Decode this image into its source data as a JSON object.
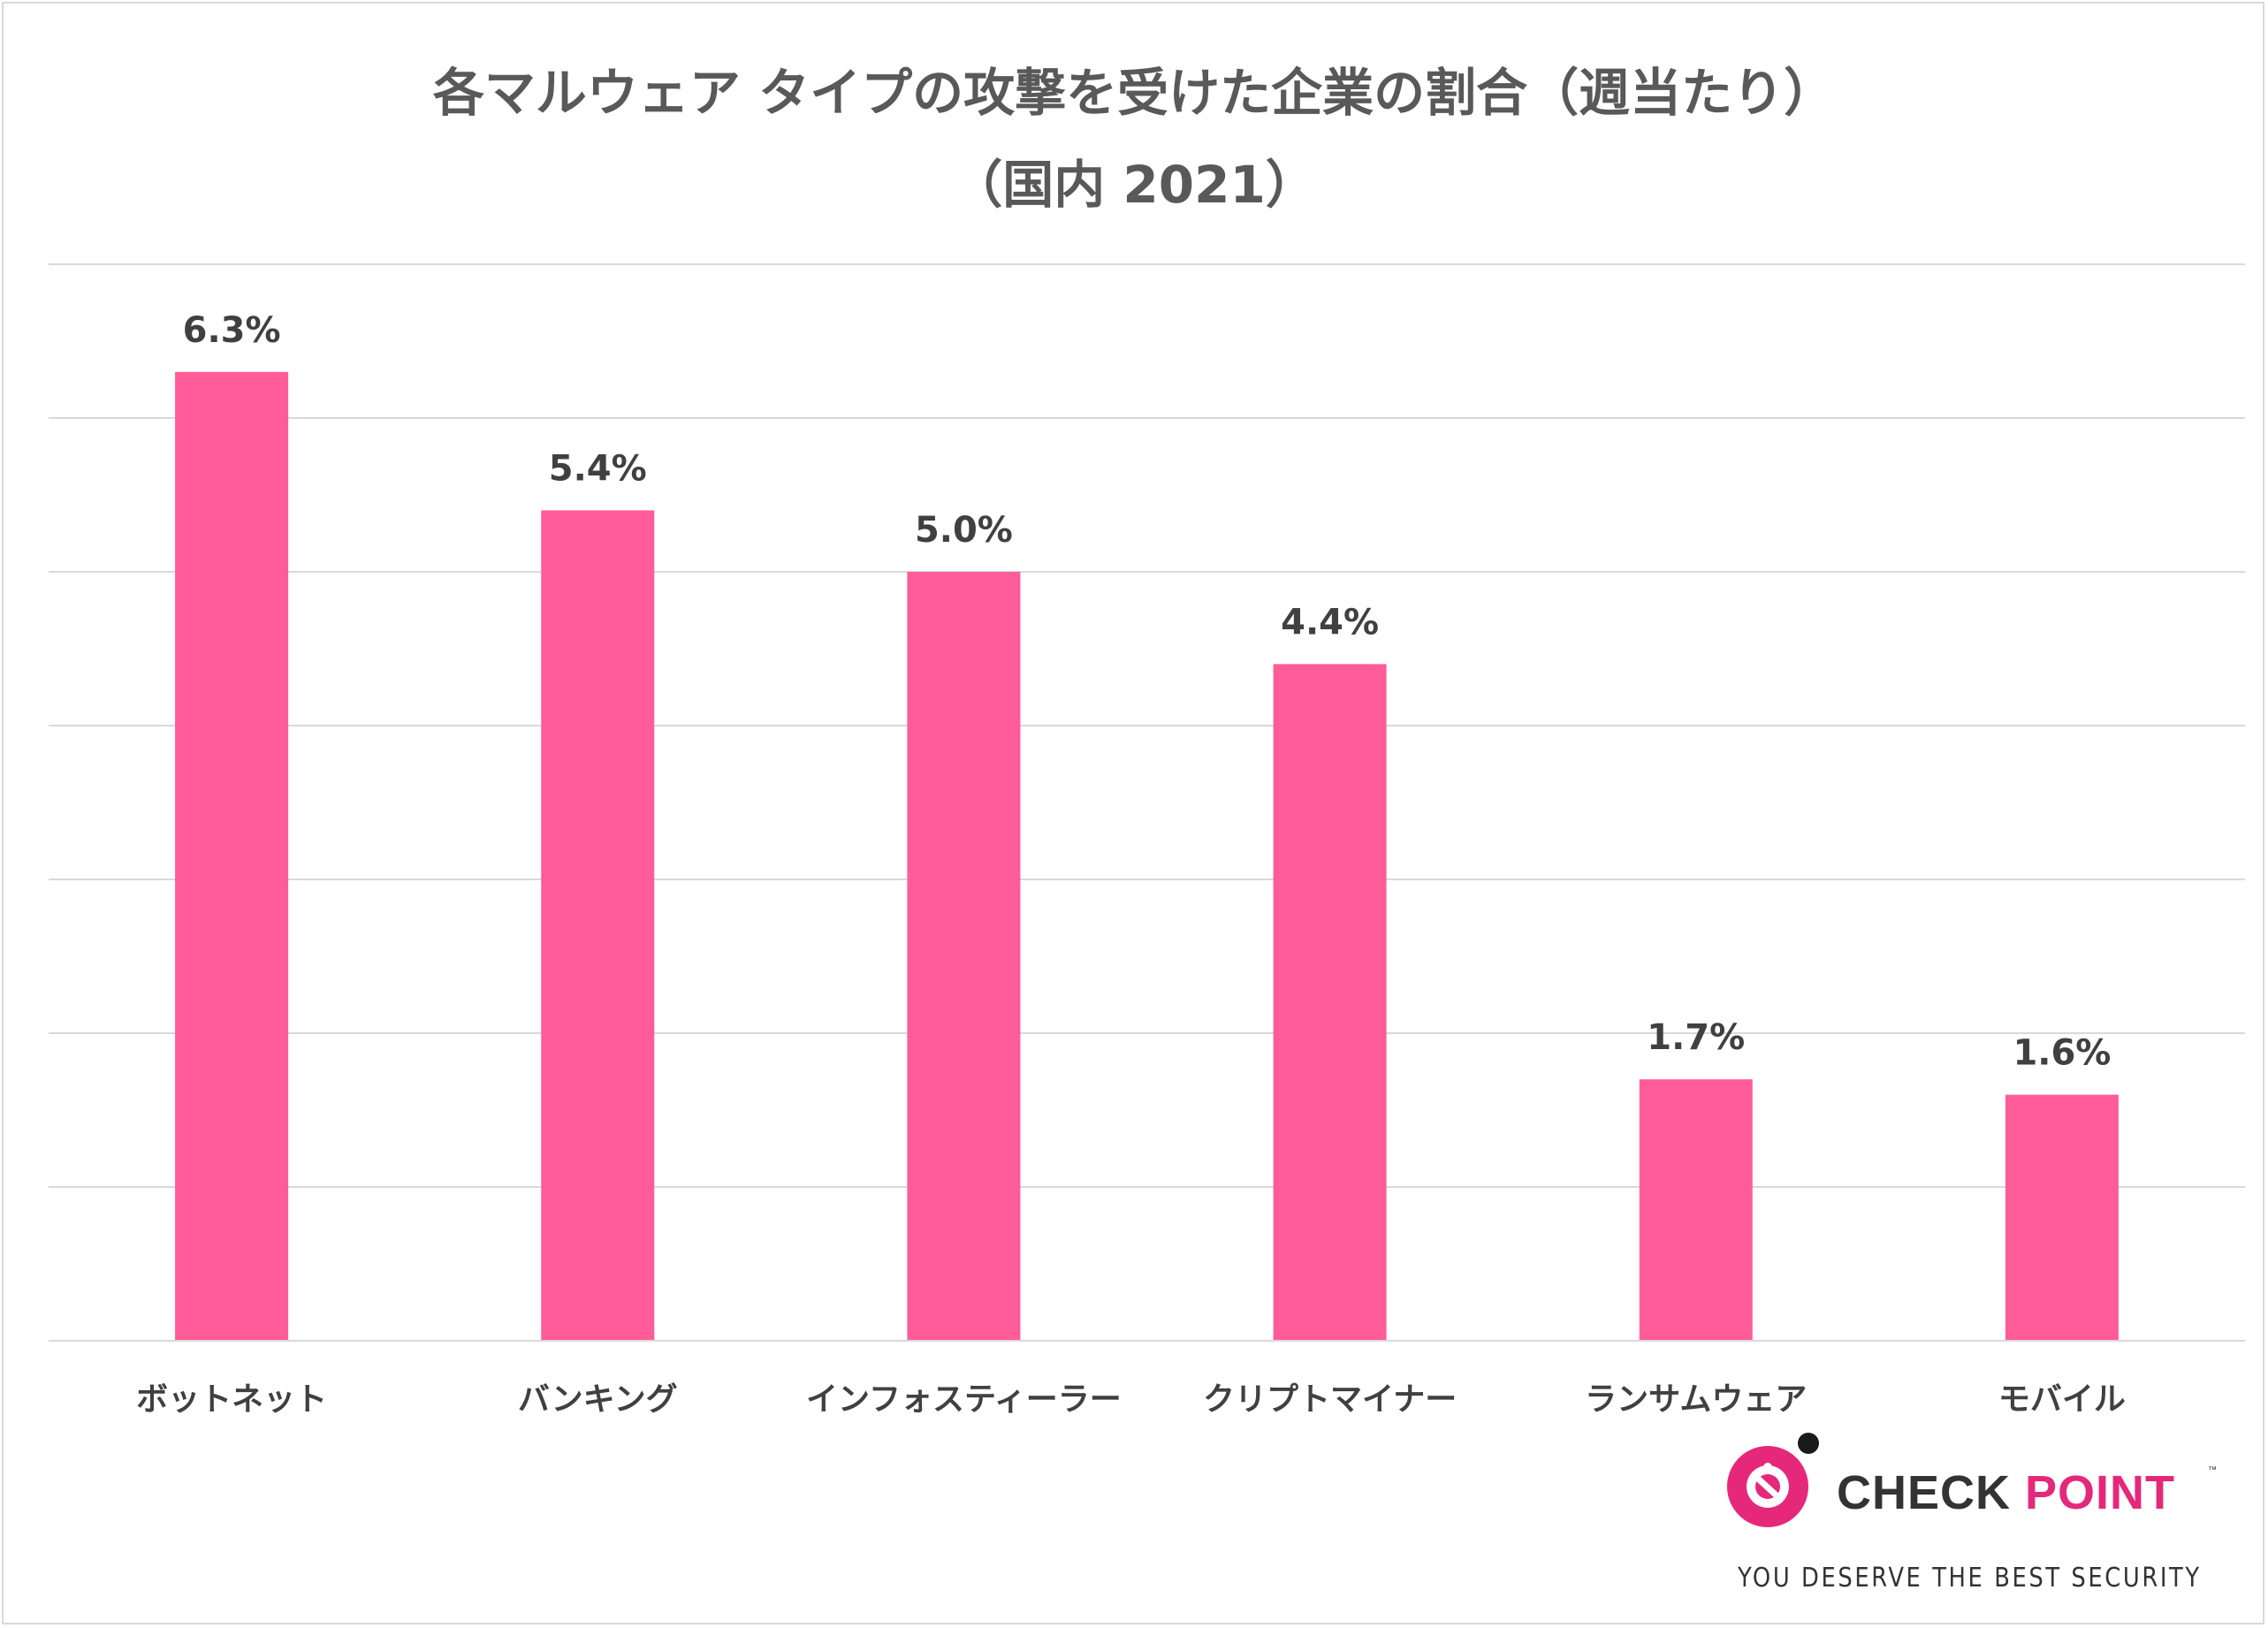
{
  "chart_data": {
    "type": "bar",
    "title": "各マルウェア タイプの攻撃を受けた企業の割合（週当たり）",
    "subtitle": "（国内 2021）",
    "categories": [
      "ボットネット",
      "バンキング",
      "インフォスティーラー",
      "クリプトマイナー",
      "ランサムウェア",
      "モバイル"
    ],
    "values": [
      6.3,
      5.4,
      5.0,
      4.4,
      1.7,
      1.6
    ],
    "value_labels": [
      "6.3%",
      "5.4%",
      "5.0%",
      "4.4%",
      "1.7%",
      "1.6%"
    ],
    "xlabel": "",
    "ylabel": "",
    "ylim": [
      0,
      7
    ],
    "y_gridline_step": 1,
    "y_tick_labels_shown": false,
    "grid": true,
    "legend": "none",
    "bar_color": "#ff5c99"
  },
  "logo": {
    "name_part1": "CHECK",
    "name_part2": "POINT",
    "trademark": "™",
    "tagline": "YOU DESERVE THE BEST SECURITY",
    "accent_color": "#e6287a"
  }
}
